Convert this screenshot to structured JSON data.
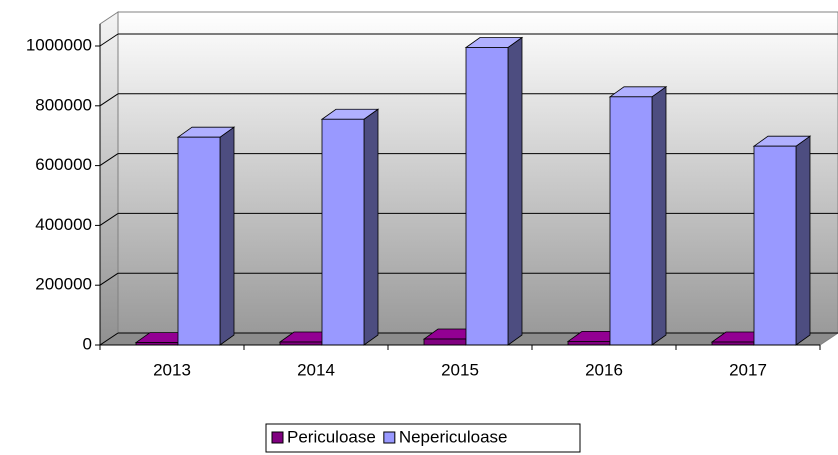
{
  "chart_data": {
    "type": "bar3d",
    "categories": [
      "2013",
      "2014",
      "2015",
      "2016",
      "2017"
    ],
    "series": [
      {
        "name": "Periculoase",
        "color": "#800080",
        "values": [
          8000,
          10000,
          20000,
          12000,
          10000
        ]
      },
      {
        "name": "Nepericuloase",
        "color": "#9999ff",
        "values": [
          695000,
          755000,
          995000,
          830000,
          665000
        ]
      }
    ],
    "ylim": [
      0,
      1000000
    ],
    "yticks": [
      0,
      200000,
      400000,
      600000,
      800000,
      1000000
    ],
    "grid": true,
    "legend": "bottom"
  }
}
